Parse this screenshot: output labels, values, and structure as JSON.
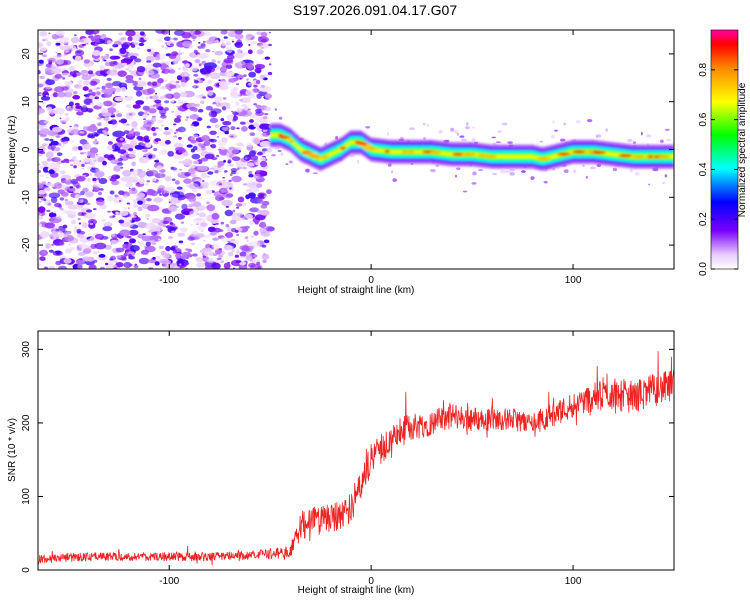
{
  "title": "S197.2026.091.04.17.G07",
  "chart_data": [
    {
      "type": "heatmap",
      "title": "S197.2026.091.04.17.G07",
      "xlabel": "Height of straight line (km)",
      "ylabel": "Frequency (Hz)",
      "xlim": [
        -165,
        150
      ],
      "ylim": [
        -25,
        25
      ],
      "xticks": [
        -100,
        0,
        100
      ],
      "yticks": [
        -20,
        -10,
        0,
        10,
        20
      ],
      "noise_region_x": [
        -165,
        -50
      ],
      "signal_track": {
        "x": [
          -50,
          -45,
          -40,
          -35,
          -30,
          -25,
          -20,
          -15,
          -10,
          -5,
          0,
          10,
          20,
          30,
          40,
          50,
          60,
          70,
          80,
          85,
          90,
          95,
          100,
          110,
          120,
          130,
          140,
          150
        ],
        "frequency": [
          3,
          3,
          2,
          0,
          -1,
          -2,
          -1,
          0,
          1.5,
          1.5,
          0,
          -0.5,
          -0.5,
          -0.5,
          -1,
          -1,
          -1.5,
          -1.5,
          -1.5,
          -2,
          -1.5,
          -1,
          -0.5,
          -0.5,
          -1,
          -1.5,
          -1.5,
          -1.5
        ]
      },
      "colorbar": {
        "label": "Normalized spectral amplitude",
        "range": [
          0.0,
          0.96
        ],
        "ticks": [
          0.0,
          0.2,
          0.4,
          0.6,
          0.8
        ],
        "tick_labels": [
          "0.0",
          "0.2",
          "0.4",
          "0.6",
          "0.8"
        ]
      }
    },
    {
      "type": "line",
      "xlabel": "Height of straight line (km)",
      "ylabel": "SNR (10 * v/v)",
      "xlim": [
        -165,
        150
      ],
      "ylim": [
        0,
        325
      ],
      "xticks": [
        -100,
        0,
        100
      ],
      "yticks": [
        0,
        100,
        200,
        300
      ],
      "color": "#ee2222",
      "series": [
        {
          "name": "SNR",
          "x": [
            -165,
            -140,
            -120,
            -100,
            -80,
            -60,
            -50,
            -40,
            -35,
            -30,
            -20,
            -10,
            -5,
            0,
            10,
            20,
            30,
            40,
            50,
            60,
            70,
            80,
            90,
            100,
            110,
            120,
            130,
            140,
            150
          ],
          "values": [
            15,
            18,
            18,
            18,
            18,
            20,
            22,
            25,
            60,
            65,
            70,
            85,
            120,
            150,
            180,
            195,
            200,
            210,
            205,
            205,
            205,
            200,
            210,
            225,
            235,
            240,
            235,
            245,
            250
          ],
          "spread": [
            12,
            12,
            12,
            12,
            12,
            12,
            14,
            16,
            40,
            40,
            40,
            45,
            45,
            45,
            40,
            40,
            35,
            35,
            35,
            30,
            30,
            30,
            35,
            35,
            40,
            45,
            45,
            45,
            45
          ]
        }
      ]
    }
  ]
}
